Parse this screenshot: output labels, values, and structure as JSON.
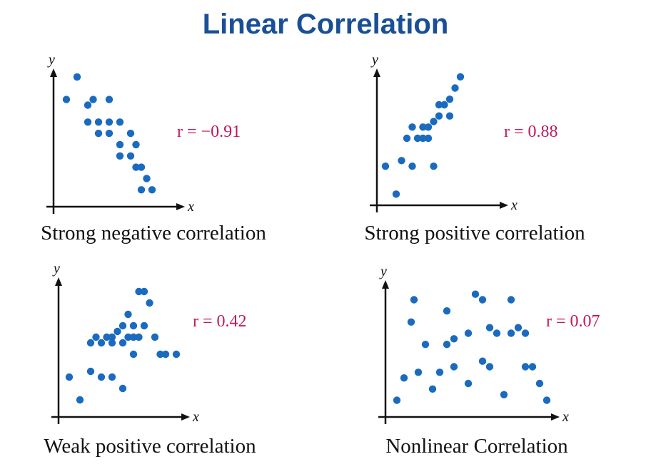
{
  "page_title": "Linear Correlation",
  "chart_data": [
    {
      "type": "scatter",
      "title": "Strong negative correlation",
      "r_label": "r = −0.91",
      "xlabel": "x",
      "ylabel": "y",
      "xlim": [
        0,
        12
      ],
      "ylim": [
        0,
        12
      ],
      "grid": false,
      "x": [
        1.2,
        2.2,
        3.2,
        3.7,
        5.2,
        3.2,
        4.2,
        5.2,
        6.2,
        4.2,
        5.2,
        6.2,
        7.2,
        6.2,
        7.2,
        7.7,
        7.7,
        8.2,
        8.2,
        8.7,
        9.2
      ],
      "y": [
        9.5,
        11.5,
        9,
        9.5,
        9.5,
        7.5,
        7.5,
        7.5,
        7.5,
        6.5,
        6.5,
        5.5,
        6.5,
        4.5,
        4.5,
        5.5,
        3.5,
        3.5,
        1.5,
        2.5,
        1.5
      ]
    },
    {
      "type": "scatter",
      "title": "Strong positive correlation",
      "r_label": "r = 0.88",
      "xlabel": "x",
      "ylabel": "y",
      "xlim": [
        0,
        12
      ],
      "ylim": [
        0,
        12
      ],
      "grid": false,
      "x": [
        0.8,
        1.8,
        2.3,
        2.8,
        3.3,
        3.3,
        3.8,
        4.3,
        4.3,
        4.8,
        4.8,
        5.3,
        5.3,
        5.8,
        5.8,
        6.3,
        6.8,
        6.8,
        7.3,
        7.8
      ],
      "y": [
        3.5,
        1.0,
        4.0,
        6.0,
        7.0,
        3.5,
        6.0,
        6.0,
        7.0,
        6.0,
        7.0,
        3.5,
        7.5,
        8.0,
        9.0,
        9.0,
        8.0,
        9.5,
        10.5,
        11.5
      ],
      "__note": ""
    },
    {
      "type": "scatter",
      "title": "Weak positive correlation",
      "r_label": "r = 0.42",
      "xlabel": "x",
      "ylabel": "y",
      "xlim": [
        0,
        12
      ],
      "ylim": [
        0,
        12
      ],
      "grid": false,
      "x": [
        1.0,
        2.0,
        3.0,
        3.0,
        3.5,
        4.0,
        4.0,
        4.5,
        5.0,
        5.0,
        5.0,
        5.5,
        6.0,
        6.0,
        6.0,
        6.5,
        6.5,
        7.0,
        7.0,
        7.0,
        7.5,
        7.5,
        8.0,
        8.0,
        8.5,
        9.0,
        9.5,
        10.0,
        11.0
      ],
      "y": [
        3.5,
        1.5,
        6.5,
        4.0,
        7.0,
        3.5,
        6.5,
        7.0,
        3.5,
        6.5,
        7.0,
        7.5,
        2.5,
        6.5,
        8.0,
        7.0,
        9.0,
        5.5,
        7.0,
        8.0,
        7.0,
        11.0,
        8.0,
        11.0,
        10.0,
        7.0,
        5.5,
        5.5,
        5.5
      ]
    },
    {
      "type": "scatter",
      "title": "Nonlinear Correlation",
      "r_label": "r = 0.07",
      "xlabel": "x",
      "ylabel": "y",
      "xlim": [
        0,
        12
      ],
      "ylim": [
        0,
        12
      ],
      "grid": false,
      "x": [
        0.8,
        1.3,
        1.8,
        2.0,
        2.3,
        2.8,
        3.3,
        3.8,
        4.3,
        4.3,
        4.8,
        4.8,
        5.8,
        5.8,
        6.3,
        6.8,
        6.8,
        7.3,
        7.3,
        7.8,
        8.3,
        8.8,
        8.8,
        9.3,
        9.8,
        9.8,
        10.3,
        10.8,
        11.3
      ],
      "y": [
        1.5,
        3.5,
        8.5,
        10.5,
        4.0,
        6.5,
        2.5,
        4.0,
        6.5,
        9.5,
        7.0,
        4.5,
        3.0,
        7.5,
        11.0,
        5.0,
        10.5,
        4.5,
        8.0,
        7.5,
        2.0,
        7.5,
        10.5,
        8.0,
        4.5,
        7.5,
        4.5,
        3.0,
        1.5
      ]
    }
  ]
}
